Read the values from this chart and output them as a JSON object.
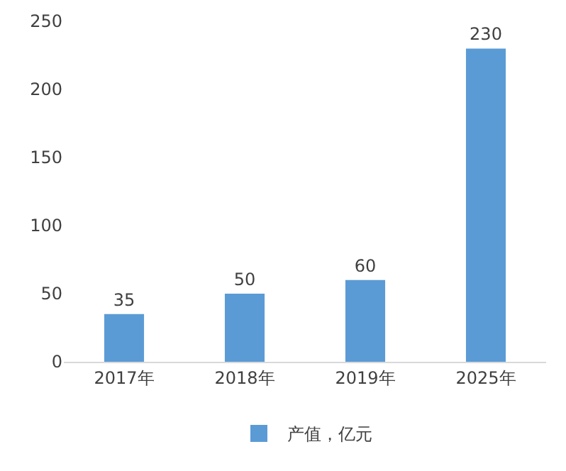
{
  "chart_data": {
    "type": "bar",
    "categories": [
      "2017年",
      "2018年",
      "2019年",
      "2025年"
    ],
    "series": [
      {
        "name": "产值，亿元",
        "color": "#5b9bd5",
        "values": [
          35,
          50,
          60,
          230
        ]
      }
    ],
    "ylim": [
      0,
      250
    ],
    "yticks": [
      0,
      50,
      100,
      150,
      200,
      250
    ],
    "grid": false,
    "legend": "bottom",
    "data_labels": true
  }
}
